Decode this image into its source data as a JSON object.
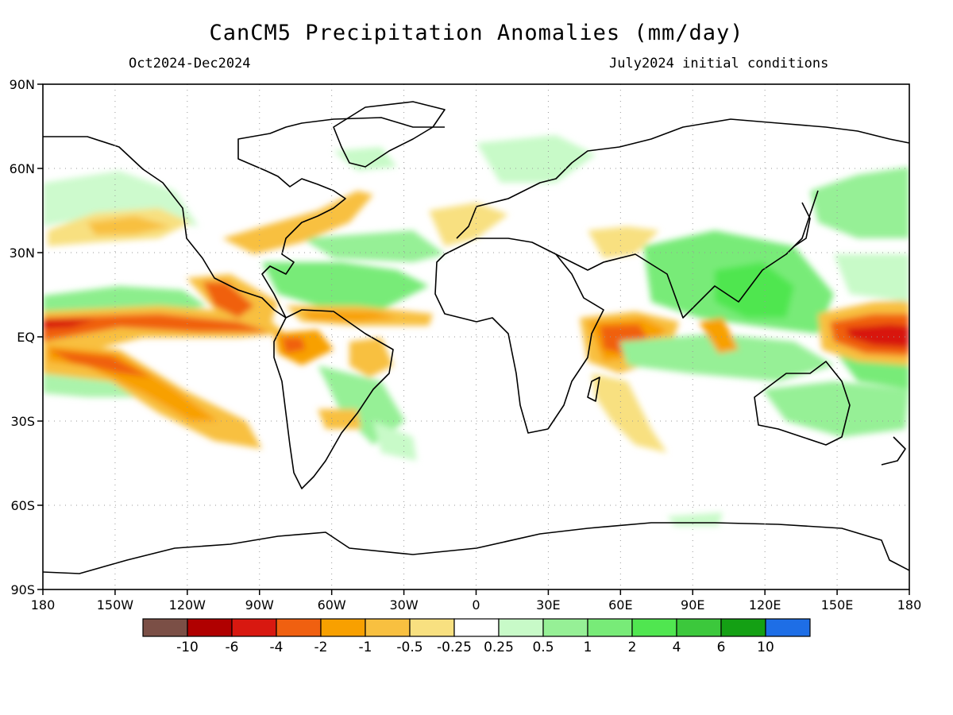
{
  "title": "CanCM5 Precipitation Anomalies (mm/day)",
  "period": "Oct2024-Dec2024",
  "initial_conditions": "July2024 initial conditions",
  "x_ticks": [
    "180",
    "150W",
    "120W",
    "90W",
    "60W",
    "30W",
    "0",
    "30E",
    "60E",
    "90E",
    "120E",
    "150E",
    "180"
  ],
  "x_tick_lons": [
    -180,
    -150,
    -120,
    -90,
    -60,
    -30,
    0,
    30,
    60,
    90,
    120,
    150,
    180
  ],
  "y_ticks": [
    "90N",
    "60N",
    "30N",
    "EQ",
    "30S",
    "60S",
    "90S"
  ],
  "y_tick_lats": [
    90,
    60,
    30,
    0,
    -30,
    -60,
    -90
  ],
  "colorbar": {
    "colors": [
      "#7b4f46",
      "#b00000",
      "#d81810",
      "#f06010",
      "#f8a000",
      "#f8c040",
      "#f8e080",
      "#ffffff",
      "#c8fac8",
      "#96f096",
      "#78eb78",
      "#50e650",
      "#3cc83c",
      "#14a014",
      "#1e6ee6"
    ],
    "labels": [
      "-10",
      "-6",
      "-4",
      "-2",
      "-1",
      "-0.5",
      "-0.25",
      "0.25",
      "0.5",
      "1",
      "2",
      "4",
      "6",
      "10"
    ]
  },
  "chart_data": {
    "type": "heatmap",
    "variable": "Precipitation Anomalies (mm/day)",
    "xlim": [
      -180,
      180
    ],
    "ylim": [
      -90,
      90
    ],
    "grid": true,
    "anomaly_regions_mm_per_day": [
      {
        "lon": [
          -180,
          -100
        ],
        "lat": [
          -1,
          6
        ],
        "value": -3
      },
      {
        "lon": [
          -175,
          -160
        ],
        "lat": [
          0,
          4
        ],
        "value": -7
      },
      {
        "lon": [
          -175,
          -140
        ],
        "lat": [
          -8,
          -2
        ],
        "value": -2
      },
      {
        "lon": [
          -170,
          -120
        ],
        "lat": [
          -12,
          -6
        ],
        "value": -1
      },
      {
        "lon": [
          -160,
          -110
        ],
        "lat": [
          -24,
          -12
        ],
        "value": -0.75
      },
      {
        "lon": [
          -180,
          -120
        ],
        "lat": [
          30,
          38
        ],
        "value": -0.75
      },
      {
        "lon": [
          -100,
          -80
        ],
        "lat": [
          8,
          20
        ],
        "value": -1.5
      },
      {
        "lon": [
          -90,
          -75
        ],
        "lat": [
          0,
          6
        ],
        "value": -2
      },
      {
        "lon": [
          -60,
          -35
        ],
        "lat": [
          -8,
          8
        ],
        "value": -1.5
      },
      {
        "lon": [
          -80,
          -55
        ],
        "lat": [
          30,
          45
        ],
        "value": -0.75
      },
      {
        "lon": [
          40,
          65
        ],
        "lat": [
          -10,
          3
        ],
        "value": -2.5
      },
      {
        "lon": [
          45,
          60
        ],
        "lat": [
          -6,
          0
        ],
        "value": -5
      },
      {
        "lon": [
          150,
          180
        ],
        "lat": [
          -5,
          5
        ],
        "value": -3
      },
      {
        "lon": [
          160,
          180
        ],
        "lat": [
          -2,
          2
        ],
        "value": -7
      },
      {
        "lon": [
          95,
          110
        ],
        "lat": [
          -8,
          2
        ],
        "value": -2
      },
      {
        "lon": [
          -180,
          -100
        ],
        "lat": [
          10,
          20
        ],
        "value": 1
      },
      {
        "lon": [
          -180,
          -140
        ],
        "lat": [
          -20,
          -12
        ],
        "value": 1
      },
      {
        "lon": [
          -85,
          -60
        ],
        "lat": [
          10,
          25
        ],
        "value": 1
      },
      {
        "lon": [
          60,
          140
        ],
        "lat": [
          0,
          30
        ],
        "value": 1.5
      },
      {
        "lon": [
          110,
          130
        ],
        "lat": [
          5,
          15
        ],
        "value": 2.5
      },
      {
        "lon": [
          60,
          120
        ],
        "lat": [
          -15,
          -5
        ],
        "value": 1
      },
      {
        "lon": [
          120,
          180
        ],
        "lat": [
          -30,
          -10
        ],
        "value": 0.75
      },
      {
        "lon": [
          120,
          180
        ],
        "lat": [
          35,
          55
        ],
        "value": 0.5
      }
    ]
  }
}
